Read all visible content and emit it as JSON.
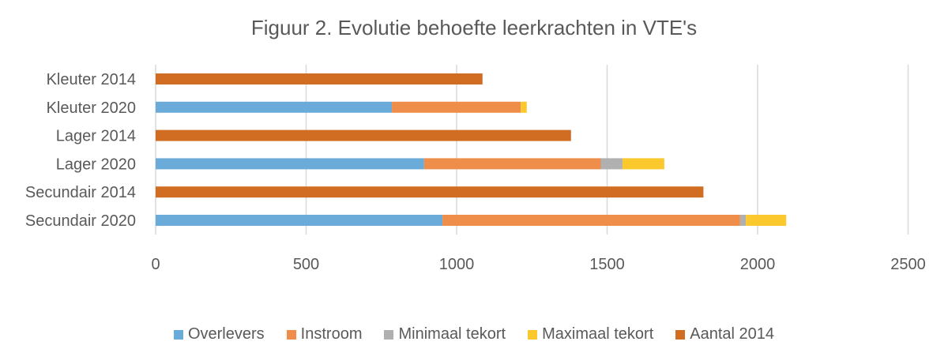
{
  "chart_data": {
    "type": "bar",
    "orientation": "horizontal",
    "stacked": true,
    "title": "Figuur 2. Evolutie behoefte leerkrachten in VTE's",
    "categories": [
      "Kleuter 2014",
      "Kleuter 2020",
      "Lager 2014",
      "Lager 2020",
      "Secundair 2014",
      "Secundair 2020"
    ],
    "series": [
      {
        "name": "Overlevers",
        "color": "#6AABDA",
        "values": [
          0,
          785,
          0,
          892,
          0,
          953
        ]
      },
      {
        "name": "Instroom",
        "color": "#EF8D4A",
        "values": [
          0,
          428,
          0,
          587,
          0,
          989
        ]
      },
      {
        "name": "Minimaal tekort",
        "color": "#B0B0B0",
        "values": [
          0,
          0,
          0,
          72,
          0,
          19
        ]
      },
      {
        "name": "Maximaal tekort",
        "color": "#FBC82E",
        "values": [
          0,
          20,
          0,
          139,
          0,
          134
        ]
      },
      {
        "name": "Aantal 2014",
        "color": "#D06D22",
        "values": [
          1086,
          0,
          1380,
          0,
          1820,
          0
        ]
      }
    ],
    "xlim": [
      0,
      2500
    ],
    "xticks": [
      "0",
      "500",
      "1000",
      "1500",
      "2000",
      "2500"
    ],
    "grid": true,
    "legend_position": "bottom"
  }
}
